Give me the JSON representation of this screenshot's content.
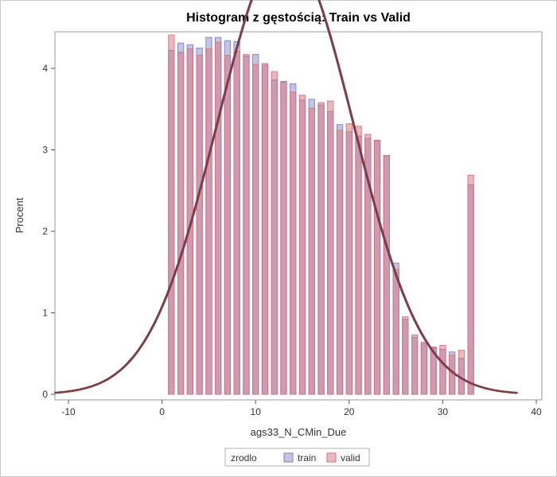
{
  "chart_data": {
    "type": "bar",
    "title": "Histogram z gęstością: Train vs Valid",
    "xlabel": "ags33_N_CMin_Due",
    "ylabel": "Procent",
    "xlim": [
      -11.5,
      40
    ],
    "ylim": [
      0,
      4.4
    ],
    "x_ticks": [
      -10,
      0,
      10,
      20,
      30,
      40
    ],
    "y_ticks": [
      0,
      1,
      2,
      3,
      4
    ],
    "bin_width": 1,
    "categories": [
      1,
      2,
      3,
      4,
      5,
      6,
      7,
      8,
      9,
      10,
      11,
      12,
      13,
      14,
      15,
      16,
      17,
      18,
      19,
      20,
      21,
      22,
      23,
      24,
      25,
      26,
      27,
      28,
      29,
      30,
      31,
      32,
      33
    ],
    "series": [
      {
        "name": "train",
        "color": "#7a7ec8",
        "opacity": 0.45,
        "values": [
          4.22,
          4.31,
          4.29,
          4.25,
          4.38,
          4.38,
          4.34,
          4.33,
          4.15,
          4.17,
          4.04,
          3.86,
          3.84,
          3.81,
          3.61,
          3.62,
          3.55,
          3.47,
          3.31,
          3.22,
          3.17,
          3.14,
          3.11,
          2.93,
          1.61,
          0.92,
          0.7,
          0.62,
          0.57,
          0.55,
          0.52,
          0.44,
          2.57
        ]
      },
      {
        "name": "valid",
        "color": "#d9707a",
        "opacity": 0.5,
        "values": [
          4.41,
          4.2,
          4.24,
          4.16,
          4.24,
          4.32,
          4.16,
          4.21,
          4.17,
          4.05,
          4.06,
          3.96,
          3.83,
          3.71,
          3.67,
          3.51,
          3.58,
          3.6,
          3.24,
          3.32,
          3.29,
          3.19,
          3.12,
          2.93,
          1.53,
          0.95,
          0.73,
          0.64,
          0.58,
          0.6,
          0.48,
          0.54,
          2.69
        ]
      }
    ],
    "density": {
      "type": "normal",
      "mean": 13.2,
      "sd": 7.3,
      "color": "#8b3a3a",
      "underlay_color": "#3a4fa0"
    },
    "legend": {
      "title": "zrodlo",
      "placement": "bottom-center",
      "entries": [
        "train",
        "valid"
      ]
    }
  }
}
